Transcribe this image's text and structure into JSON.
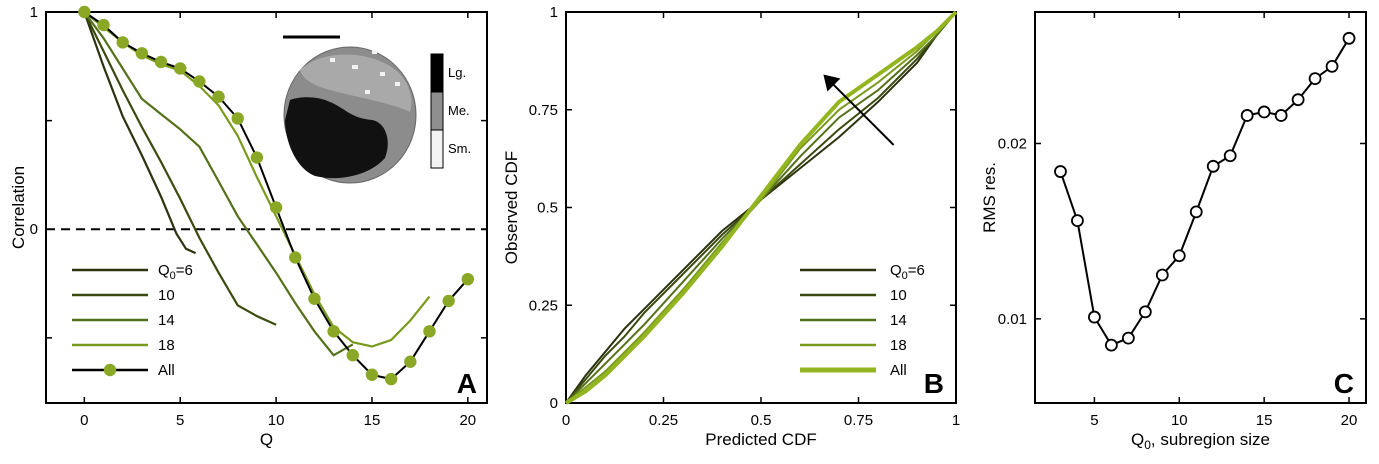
{
  "colors": {
    "q6": "#2c3310",
    "q10": "#3b4a0f",
    "q14": "#55701a",
    "q18": "#7a9a1e",
    "all_marker": "#8aa826",
    "all_line": "#000000",
    "observed": "#93b51f"
  },
  "chart_data": [
    {
      "panel": "A",
      "type": "line",
      "xlabel": "Q",
      "ylabel": "Correlation",
      "xlim": [
        -2,
        21
      ],
      "ylim": [
        -0.8,
        1
      ],
      "xticks": [
        0,
        5,
        10,
        15,
        20
      ],
      "yticks": [
        0,
        1
      ],
      "ytick_labels": [
        "0",
        "1"
      ],
      "series": [
        {
          "name": "Q0=6",
          "name_main": "Q",
          "name_sub": "0",
          "name_tail": "=6",
          "color_key": "q6",
          "x": [
            0,
            1,
            2,
            3,
            4,
            4.8,
            5.3,
            5.8
          ],
          "y": [
            1,
            0.75,
            0.52,
            0.34,
            0.15,
            -0.02,
            -0.09,
            -0.11
          ]
        },
        {
          "name": "10",
          "color_key": "q10",
          "x": [
            0,
            1,
            2,
            3,
            4,
            5,
            6,
            7,
            8,
            9,
            10
          ],
          "y": [
            1,
            0.82,
            0.64,
            0.47,
            0.31,
            0.14,
            -0.04,
            -0.2,
            -0.35,
            -0.4,
            -0.44
          ]
        },
        {
          "name": "14",
          "color_key": "q14",
          "x": [
            0,
            1,
            2,
            3,
            4,
            5,
            6,
            7,
            8,
            9,
            10,
            11,
            12,
            13,
            14
          ],
          "y": [
            1,
            0.88,
            0.74,
            0.6,
            0.53,
            0.46,
            0.38,
            0.22,
            0.06,
            -0.07,
            -0.2,
            -0.34,
            -0.47,
            -0.58,
            -0.53
          ]
        },
        {
          "name": "18",
          "color_key": "q18",
          "x": [
            0,
            1,
            2,
            3,
            4,
            5,
            6,
            7,
            8,
            9,
            10,
            11,
            12,
            13,
            14,
            15,
            16,
            17,
            18
          ],
          "y": [
            1,
            0.93,
            0.86,
            0.8,
            0.76,
            0.73,
            0.66,
            0.57,
            0.43,
            0.24,
            0.06,
            -0.12,
            -0.3,
            -0.45,
            -0.52,
            -0.54,
            -0.51,
            -0.42,
            -0.31
          ]
        },
        {
          "name": "All",
          "color_key": "all_marker",
          "line_color_key": "all_line",
          "markers": true,
          "x": [
            0,
            1,
            2,
            3,
            4,
            5,
            6,
            7,
            8,
            9,
            10,
            11,
            12,
            13,
            14,
            15,
            16,
            17,
            18,
            19,
            20
          ],
          "y": [
            1,
            0.94,
            0.86,
            0.81,
            0.77,
            0.74,
            0.68,
            0.61,
            0.51,
            0.33,
            0.1,
            -0.13,
            -0.32,
            -0.47,
            -0.58,
            -0.67,
            -0.69,
            -0.61,
            -0.47,
            -0.33,
            -0.23
          ]
        }
      ],
      "reference_line": {
        "y": 0,
        "style": "dashed"
      },
      "inset": {
        "colorbar_labels": [
          "Lg.",
          "Me.",
          "Sm."
        ]
      },
      "label": "A"
    },
    {
      "panel": "B",
      "type": "line",
      "xlabel": "Predicted CDF",
      "ylabel": "Observed CDF",
      "xlim": [
        0,
        1
      ],
      "ylim": [
        0,
        1
      ],
      "xticks": [
        0,
        0.25,
        0.5,
        0.75,
        1
      ],
      "xtick_labels": [
        "0",
        "0.25",
        "0.5",
        "0.75",
        "1"
      ],
      "yticks": [
        0,
        0.25,
        0.5,
        0.75,
        1
      ],
      "ytick_labels": [
        "0",
        "0.25",
        "0.5",
        "0.75",
        "1"
      ],
      "series": [
        {
          "name": "Q0=6",
          "name_main": "Q",
          "name_sub": "0",
          "name_tail": "=6",
          "color_key": "q6",
          "x": [
            0,
            0.05,
            0.1,
            0.15,
            0.2,
            0.3,
            0.4,
            0.5,
            0.6,
            0.7,
            0.8,
            0.9,
            0.95,
            1
          ],
          "y": [
            0,
            0.07,
            0.13,
            0.19,
            0.24,
            0.34,
            0.44,
            0.52,
            0.6,
            0.68,
            0.77,
            0.87,
            0.94,
            1
          ]
        },
        {
          "name": "10",
          "color_key": "q10",
          "x": [
            0,
            0.05,
            0.1,
            0.15,
            0.2,
            0.3,
            0.4,
            0.5,
            0.6,
            0.7,
            0.8,
            0.9,
            0.95,
            1
          ],
          "y": [
            0,
            0.06,
            0.12,
            0.17,
            0.23,
            0.33,
            0.43,
            0.52,
            0.61,
            0.7,
            0.78,
            0.88,
            0.94,
            1
          ]
        },
        {
          "name": "14",
          "color_key": "q14",
          "x": [
            0,
            0.05,
            0.1,
            0.15,
            0.2,
            0.3,
            0.4,
            0.5,
            0.6,
            0.7,
            0.8,
            0.9,
            0.95,
            1
          ],
          "y": [
            0,
            0.05,
            0.1,
            0.15,
            0.2,
            0.31,
            0.42,
            0.52,
            0.63,
            0.73,
            0.8,
            0.89,
            0.94,
            1
          ]
        },
        {
          "name": "18",
          "color_key": "q18",
          "x": [
            0,
            0.05,
            0.1,
            0.15,
            0.2,
            0.3,
            0.4,
            0.5,
            0.6,
            0.7,
            0.8,
            0.9,
            0.95,
            1
          ],
          "y": [
            0,
            0.04,
            0.08,
            0.13,
            0.18,
            0.29,
            0.41,
            0.52,
            0.65,
            0.75,
            0.82,
            0.9,
            0.95,
            1
          ]
        },
        {
          "name": "All",
          "color_key": "observed",
          "thick": true,
          "x": [
            0,
            0.05,
            0.1,
            0.15,
            0.2,
            0.3,
            0.4,
            0.5,
            0.6,
            0.7,
            0.8,
            0.9,
            0.95,
            1
          ],
          "y": [
            0,
            0.03,
            0.07,
            0.12,
            0.17,
            0.28,
            0.4,
            0.53,
            0.66,
            0.77,
            0.84,
            0.91,
            0.95,
            1
          ]
        }
      ],
      "arrow": {
        "from": [
          0.84,
          0.66
        ],
        "to": [
          0.66,
          0.84
        ]
      },
      "label": "B"
    },
    {
      "panel": "C",
      "type": "scatter",
      "xlabel_main": "Q",
      "xlabel_sub": "0",
      "xlabel_tail": ", subregion size",
      "ylabel": "RMS res.",
      "xlim": [
        1.5,
        21
      ],
      "ylim": [
        0.0052,
        0.0275
      ],
      "xticks": [
        5,
        10,
        15,
        20
      ],
      "yticks": [
        0.01,
        0.02
      ],
      "ytick_labels": [
        "0.01",
        "0.02"
      ],
      "series": [
        {
          "name": "RMS res.",
          "x": [
            3,
            4,
            5,
            6,
            7,
            8,
            9,
            10,
            11,
            12,
            13,
            14,
            15,
            16,
            17,
            18,
            19,
            20
          ],
          "y": [
            0.0184,
            0.0156,
            0.0101,
            0.0085,
            0.0089,
            0.0104,
            0.0125,
            0.0136,
            0.0161,
            0.0187,
            0.0193,
            0.0216,
            0.0218,
            0.0216,
            0.0225,
            0.0237,
            0.0244,
            0.026
          ]
        }
      ],
      "label": "C"
    }
  ]
}
